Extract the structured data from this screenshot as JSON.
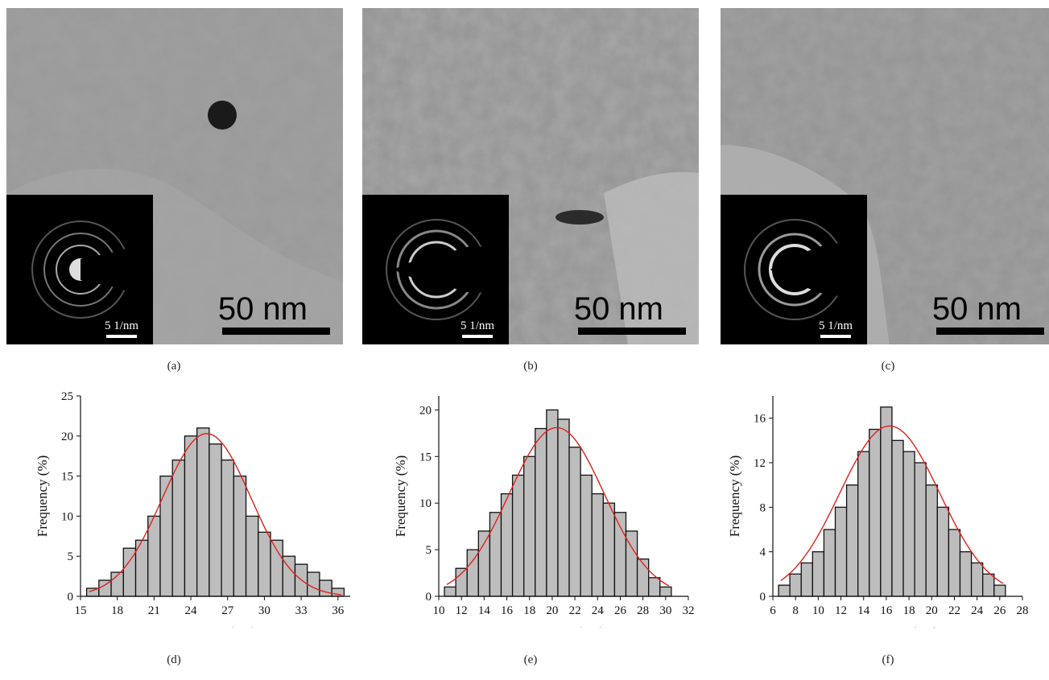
{
  "panels": [
    {
      "caption": "(a)",
      "scale_bar": "50 nm",
      "inset_scale": "5 1/nm"
    },
    {
      "caption": "(b)",
      "scale_bar": "50 nm",
      "inset_scale": "5 1/nm"
    },
    {
      "caption": "(c)",
      "scale_bar": "50 nm",
      "inset_scale": "5 1/nm"
    }
  ],
  "chart_captions": [
    "(d)",
    "(e)",
    "(f)"
  ],
  "colors": {
    "bar_fill": "#bdbdbd",
    "bar_stroke": "#111111",
    "fit_line": "#e0211b"
  },
  "chart_data": [
    {
      "type": "bar",
      "xlabel": "Diameter (nm)",
      "ylabel": "Frequency (%)",
      "xlim": [
        15,
        37
      ],
      "ylim": [
        0,
        25
      ],
      "xticks": [
        15,
        18,
        21,
        24,
        27,
        30,
        33,
        36
      ],
      "yticks": [
        0,
        5,
        10,
        15,
        20,
        25
      ],
      "x": [
        16,
        17,
        18,
        19,
        20,
        21,
        22,
        23,
        24,
        25,
        26,
        27,
        28,
        29,
        30,
        31,
        32,
        33,
        34,
        35,
        36
      ],
      "values": [
        1,
        2,
        3,
        6,
        7,
        10,
        15,
        17,
        20,
        21,
        19,
        17,
        15,
        10,
        8,
        7,
        5,
        4,
        3,
        2,
        1
      ],
      "fit": {
        "type": "gaussian",
        "peak": 20.3,
        "mean": 25.3,
        "sd": 3.6
      }
    },
    {
      "type": "bar",
      "xlabel": "Diameter (nm)",
      "ylabel": "Frequency (%)",
      "xlim": [
        10,
        32
      ],
      "ylim": [
        0,
        21.5
      ],
      "xticks": [
        10,
        12,
        14,
        16,
        18,
        20,
        22,
        24,
        26,
        28,
        30,
        32
      ],
      "yticks": [
        0,
        5,
        10,
        15,
        20
      ],
      "x": [
        11,
        12,
        13,
        14,
        15,
        16,
        17,
        18,
        19,
        20,
        21,
        22,
        23,
        24,
        25,
        26,
        27,
        28,
        29,
        30
      ],
      "values": [
        1,
        3,
        5,
        7,
        9,
        11,
        13,
        15,
        18,
        20,
        19,
        16,
        13,
        11,
        10,
        9,
        7,
        4,
        2,
        1
      ],
      "fit": {
        "type": "gaussian",
        "peak": 18.1,
        "mean": 20.4,
        "sd": 4.2
      }
    },
    {
      "type": "bar",
      "xlabel": "Diameter (nm)",
      "ylabel": "Frequency (%)",
      "xlim": [
        6,
        28
      ],
      "ylim": [
        0,
        18
      ],
      "xticks": [
        6,
        8,
        10,
        12,
        14,
        16,
        18,
        20,
        22,
        24,
        26,
        28
      ],
      "yticks": [
        0,
        4,
        8,
        12,
        16
      ],
      "x": [
        7,
        8,
        9,
        10,
        11,
        12,
        13,
        14,
        15,
        16,
        17,
        18,
        19,
        20,
        21,
        22,
        23,
        24,
        25,
        26
      ],
      "values": [
        1,
        2,
        3,
        4,
        6,
        8,
        10,
        13,
        15,
        17,
        14,
        13,
        12,
        10,
        8,
        6,
        4,
        3,
        2,
        1
      ],
      "fit": {
        "type": "gaussian",
        "peak": 15.3,
        "mean": 16.3,
        "sd": 4.4
      }
    }
  ]
}
